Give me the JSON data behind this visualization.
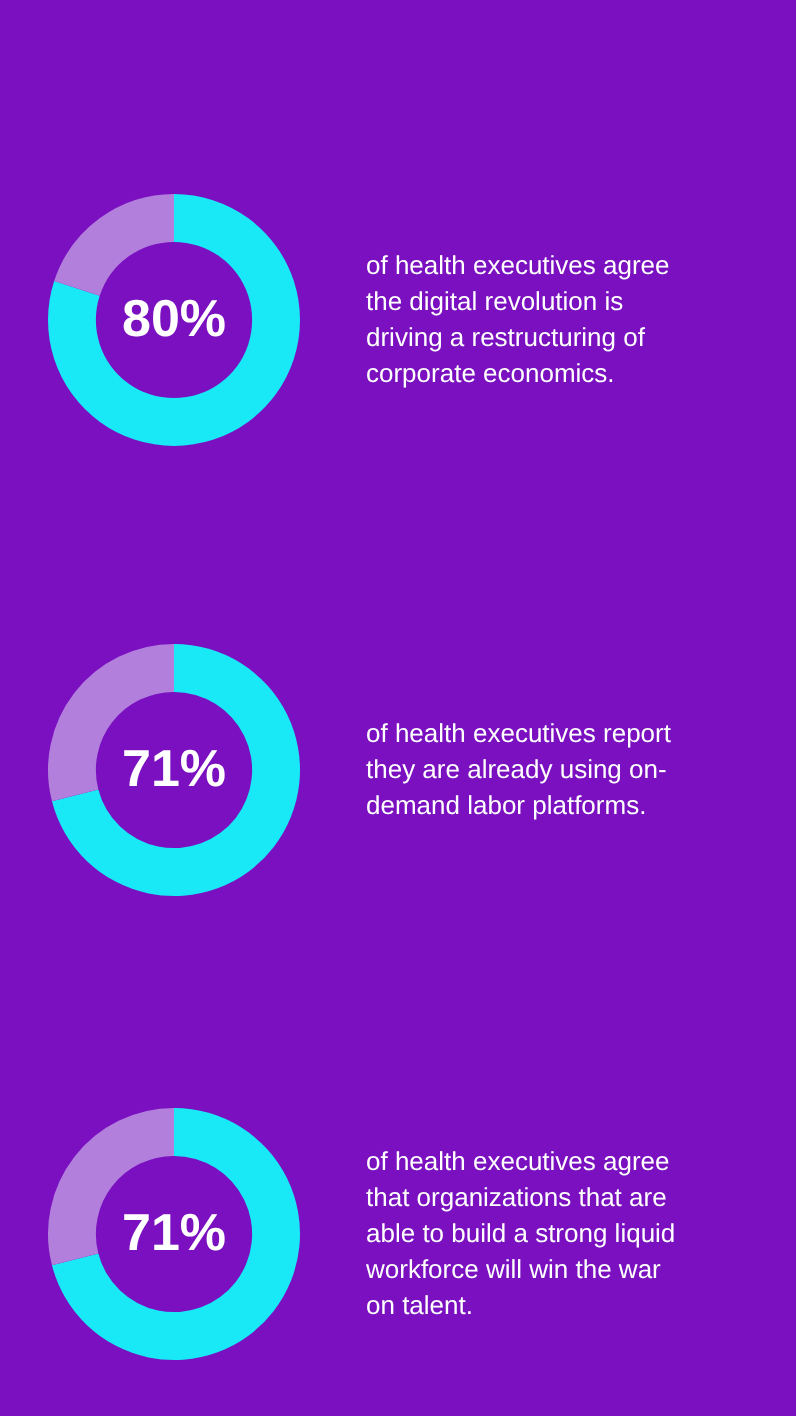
{
  "chart_data": [
    {
      "type": "donut",
      "categories": [
        null,
        null
      ],
      "values": [
        80,
        20
      ],
      "colors": [
        "#19e8f7",
        "#b27fdc"
      ],
      "value_labels": [
        "80%",
        null
      ],
      "annotations": [
        "of health executives agree the digital revolution is driving a restructuring of corporate economics."
      ]
    },
    {
      "type": "donut",
      "categories": [
        null,
        null
      ],
      "values": [
        71,
        29
      ],
      "colors": [
        "#19e8f7",
        "#b27fdc"
      ],
      "value_labels": [
        "71%",
        null
      ],
      "annotations": [
        "of health executives report they are already using on-demand labor platforms."
      ]
    },
    {
      "type": "donut",
      "categories": [
        null,
        null
      ],
      "values": [
        71,
        29
      ],
      "colors": [
        "#19e8f7",
        "#b27fdc"
      ],
      "value_labels": [
        "71%",
        null
      ],
      "annotations": [
        "of health executives agree that organizations that are able to build a strong liquid workforce will win the war on talent."
      ]
    }
  ]
}
